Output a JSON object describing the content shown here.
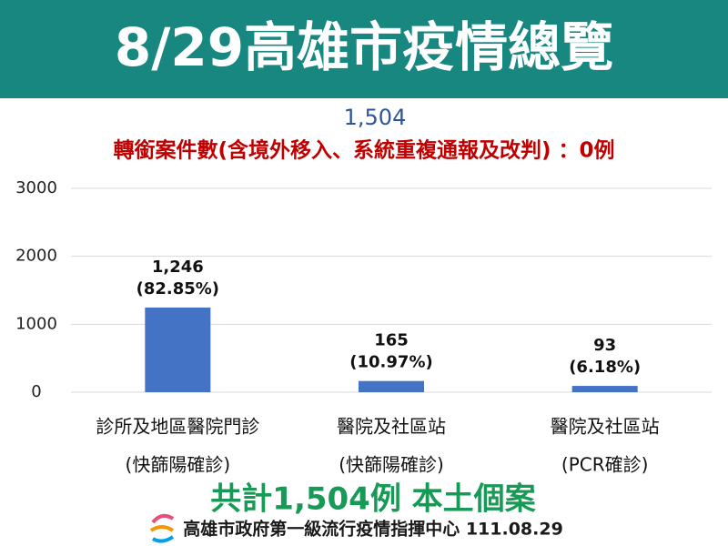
{
  "header": {
    "title": "8/29高雄市疫情總覽"
  },
  "chart_data": {
    "type": "bar",
    "subtitle": "1,504",
    "note": "轉銜案件數(含境外移入、系統重複通報及改判) ：0例",
    "categories": [
      "診所及地區醫院門診",
      "醫院及社區站",
      "醫院及社區站"
    ],
    "category_notes": [
      "(快篩陽確診)",
      "(快篩陽確診)",
      "(PCR確診)"
    ],
    "values": [
      1246,
      165,
      93
    ],
    "value_labels": [
      "1,246",
      "165",
      "93"
    ],
    "share_labels": [
      "(82.85%)",
      "(10.97%)",
      "(6.18%)"
    ],
    "color": "#4472c4",
    "ylim": [
      0,
      3000
    ],
    "yticks": [
      0,
      1000,
      2000,
      3000
    ],
    "grid": true
  },
  "footer": {
    "total": "共計1,504例 本土個案",
    "source": "高雄市政府第一級流行疫情指揮中心 111.08.29"
  }
}
